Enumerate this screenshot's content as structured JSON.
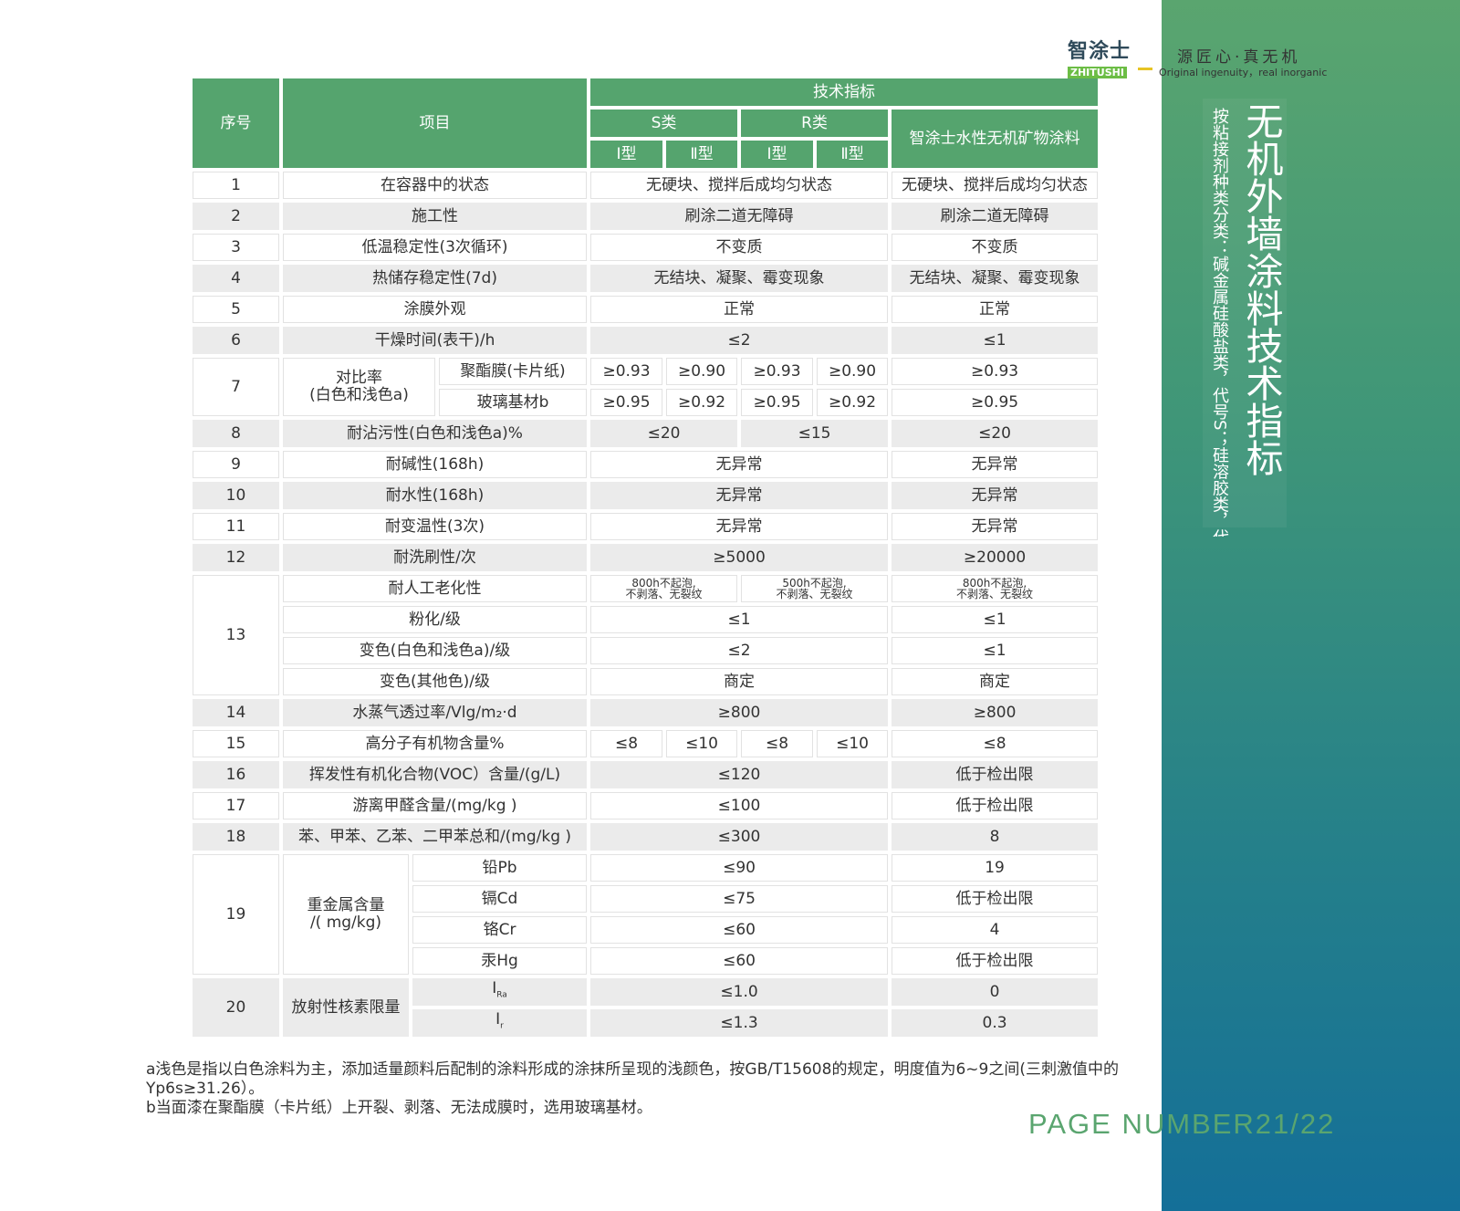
{
  "brand": {
    "logo_cn": "智涂士",
    "logo_en": "ZHITUSHI",
    "slogan": "源匠心·真无机",
    "slogan_en": "Original ingenuity，real inorganic"
  },
  "sidebar": {
    "title": "无机外墙涂料技术指标",
    "subtitle": "按粘接剂种类分类：碱金属硅酸盐类，代号S；硅溶胶类，代号R"
  },
  "header": {
    "no": "序号",
    "item": "项目",
    "tech": "技术指标",
    "s": "S类",
    "r": "R类",
    "type1": "Ⅰ型",
    "type2": "Ⅱ型",
    "product": "智涂士水性无机矿物涂料"
  },
  "rows": [
    {
      "no": "1",
      "item": "在容器中的状态",
      "std": "无硬块、搅拌后成均匀状态",
      "prod": "无硬块、搅拌后成均匀状态"
    },
    {
      "no": "2",
      "item": "施工性",
      "std": "刷涂二道无障碍",
      "prod": "刷涂二道无障碍"
    },
    {
      "no": "3",
      "item": "低温稳定性(3次循环)",
      "std": "不变质",
      "prod": "不变质"
    },
    {
      "no": "4",
      "item": "热储存稳定性(7d)",
      "std": "无结块、凝聚、霉变现象",
      "prod": "无结块、凝聚、霉变现象"
    },
    {
      "no": "5",
      "item": "涂膜外观",
      "std": "正常",
      "prod": "正常"
    },
    {
      "no": "6",
      "item": "干燥时间(表干)/h",
      "std": "≤2",
      "prod": "≤1"
    },
    {
      "no": "7",
      "item": "对比率\n(白色和浅色a)",
      "sub": [
        {
          "label": "聚酯膜(卡片纸)",
          "values": [
            "≥0.93",
            "≥0.90",
            "≥0.93",
            "≥0.90"
          ],
          "prod": "≥0.93"
        },
        {
          "label": "玻璃基材b",
          "values": [
            "≥0.95",
            "≥0.92",
            "≥0.95",
            "≥0.92"
          ],
          "prod": "≥0.95"
        }
      ]
    },
    {
      "no": "8",
      "item": "耐沾污性(白色和浅色a)%",
      "s": "≤20",
      "r": "≤15",
      "prod": "≤20"
    },
    {
      "no": "9",
      "item": "耐碱性(168h)",
      "std": "无异常",
      "prod": "无异常"
    },
    {
      "no": "10",
      "item": "耐水性(168h)",
      "std": "无异常",
      "prod": "无异常"
    },
    {
      "no": "11",
      "item": "耐变温性(3次)",
      "std": "无异常",
      "prod": "无异常"
    },
    {
      "no": "12",
      "item": "耐洗刷性/次",
      "std": "≥5000",
      "prod": "≥20000"
    },
    {
      "no": "13",
      "sub": [
        {
          "label": "耐人工老化性",
          "s": "800h不起泡,\n不剥落、无裂纹",
          "r": "500h不起泡,\n不剥落、无裂纹",
          "prod": "800h不起泡,\n不剥落、无裂纹"
        },
        {
          "label": "粉化/级",
          "std": "≤1",
          "prod": "≤1"
        },
        {
          "label": "变色(白色和浅色a)/级",
          "std": "≤2",
          "prod": "≤1"
        },
        {
          "label": "变色(其他色)/级",
          "std": "商定",
          "prod": "商定"
        }
      ]
    },
    {
      "no": "14",
      "item": "水蒸气透过率/Vlg/m₂·d",
      "std": "≥800",
      "prod": "≥800"
    },
    {
      "no": "15",
      "item": "高分子有机物含量%",
      "values": [
        "≤8",
        "≤10",
        "≤8",
        "≤10"
      ],
      "prod": "≤8"
    },
    {
      "no": "16",
      "item": "挥发性有机化合物(VOC）含量/(g/L)",
      "std": "≤120",
      "prod": "低于检出限"
    },
    {
      "no": "17",
      "item": "游离甲醛含量/(mg/kg )",
      "std": "≤100",
      "prod": "低于检出限"
    },
    {
      "no": "18",
      "item": "苯、甲苯、乙苯、二甲苯总和/(mg/kg )",
      "std": "≤300",
      "prod": "8"
    },
    {
      "no": "19",
      "item": "重金属含量\n/( mg/kg)",
      "sub": [
        {
          "label": "铅Pb",
          "std": "≤90",
          "prod": "19"
        },
        {
          "label": "镉Cd",
          "std": "≤75",
          "prod": "低于检出限"
        },
        {
          "label": "铬Cr",
          "std": "≤60",
          "prod": "4"
        },
        {
          "label": "汞Hg",
          "std": "≤60",
          "prod": "低于检出限"
        }
      ]
    },
    {
      "no": "20",
      "item": "放射性核素限量",
      "sub": [
        {
          "label": "I",
          "label_sub": "Ra",
          "std": "≤1.0",
          "prod": "0"
        },
        {
          "label": "I",
          "label_sub": "r",
          "std": "≤1.3",
          "prod": "0.3"
        }
      ]
    }
  ],
  "notes": [
    "a浅色是指以白色涂料为主，添加适量颜料后配制的涂料形成的涂抹所呈现的浅颜色，按GB/T15608的规定，明度值为6~9之间(三刺激值中的Yp6s≥31.26）。",
    "b当面漆在聚酯膜（卡片纸）上开裂、剥落、无法成膜时，选用玻璃基材。"
  ],
  "page_number": "PAGE NUMBER21/22",
  "colors": {
    "header_green": "#55a46e",
    "sidebar_top": "#5aa56f",
    "sidebar_bottom": "#146f98",
    "row_gray": "#ebebeb"
  }
}
